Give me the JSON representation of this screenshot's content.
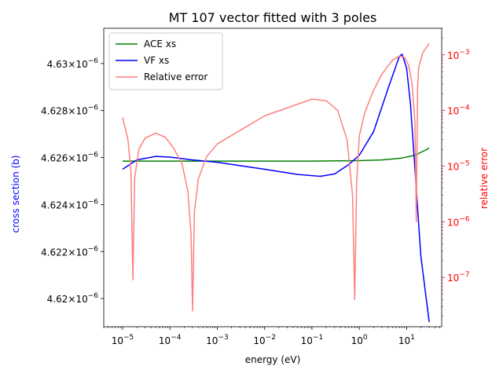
{
  "chart_data": {
    "type": "line",
    "title": "MT 107 vector fitted with 3 poles",
    "xlabel": "energy (eV)",
    "ylabel_left": "cross section (b)",
    "ylabel_right": "relative error",
    "x_scale": "log",
    "xlim": [
      4e-06,
      55
    ],
    "ylim_left": [
      4.6188e-06,
      4.6315e-06
    ],
    "y_right_scale": "log",
    "ylim_right": [
      1.3e-08,
      0.003
    ],
    "x_ticks": [
      {
        "value": 1e-05,
        "base": "10",
        "exp": "−5"
      },
      {
        "value": 0.0001,
        "base": "10",
        "exp": "−4"
      },
      {
        "value": 0.001,
        "base": "10",
        "exp": "−3"
      },
      {
        "value": 0.01,
        "base": "10",
        "exp": "−2"
      },
      {
        "value": 0.1,
        "base": "10",
        "exp": "−1"
      },
      {
        "value": 1,
        "base": "10",
        "exp": "0"
      },
      {
        "value": 10,
        "base": "10",
        "exp": "1"
      }
    ],
    "y_left_ticks": [
      {
        "value": 4.62e-06,
        "mant": "4.62",
        "exp": "−6"
      },
      {
        "value": 4.622e-06,
        "mant": "4.622",
        "exp": "−6"
      },
      {
        "value": 4.624e-06,
        "mant": "4.624",
        "exp": "−6"
      },
      {
        "value": 4.626e-06,
        "mant": "4.626",
        "exp": "−6"
      },
      {
        "value": 4.628e-06,
        "mant": "4.628",
        "exp": "−6"
      },
      {
        "value": 4.63e-06,
        "mant": "4.63",
        "exp": "−6"
      }
    ],
    "y_right_ticks": [
      {
        "value": 1e-07,
        "base": "10",
        "exp": "−7"
      },
      {
        "value": 1e-06,
        "base": "10",
        "exp": "−6"
      },
      {
        "value": 1e-05,
        "base": "10",
        "exp": "−5"
      },
      {
        "value": 0.0001,
        "base": "10",
        "exp": "−4"
      },
      {
        "value": 0.001,
        "base": "10",
        "exp": "−3"
      }
    ],
    "legend_placement": "upper left",
    "series": [
      {
        "name": "ACE xs",
        "axis": "left",
        "color": "#008000",
        "x": [
          1e-05,
          0.001,
          0.1,
          1,
          3,
          8,
          15,
          20,
          25,
          30
        ],
        "y": [
          4.62585e-06,
          4.62585e-06,
          4.62585e-06,
          4.62587e-06,
          4.6259e-06,
          4.62598e-06,
          4.6261e-06,
          4.62622e-06,
          4.62632e-06,
          4.6264e-06
        ]
      },
      {
        "name": "VF xs",
        "axis": "left",
        "color": "#0000ff",
        "x": [
          1e-05,
          2e-05,
          5e-05,
          0.0001,
          0.0003,
          0.001,
          0.01,
          0.05,
          0.15,
          0.3,
          0.6,
          1,
          2,
          4,
          7,
          8,
          10,
          12,
          15,
          20,
          30
        ],
        "y": [
          4.6255e-06,
          4.6259e-06,
          4.62605e-06,
          4.62602e-06,
          4.6259e-06,
          4.6258e-06,
          4.6255e-06,
          4.62528e-06,
          4.6252e-06,
          4.6253e-06,
          4.6257e-06,
          4.6261e-06,
          4.6271e-06,
          4.6289e-06,
          4.6303e-06,
          4.6304e-06,
          4.6298e-06,
          4.6283e-06,
          4.6255e-06,
          4.6218e-06,
          4.619e-06
        ]
      },
      {
        "name": "Relative error",
        "axis": "right",
        "color": "#ff7f7f",
        "x": [
          1e-05,
          1.3e-05,
          1.5e-05,
          1.65e-05,
          1.8e-05,
          2.2e-05,
          3e-05,
          5e-05,
          8e-05,
          0.00012,
          0.00018,
          0.00024,
          0.00028,
          0.0003,
          0.00033,
          0.0004,
          0.0006,
          0.001,
          0.01,
          0.1,
          0.2,
          0.35,
          0.55,
          0.72,
          0.8,
          0.88,
          1.0,
          1.3,
          2,
          3,
          5,
          7,
          9,
          11,
          13,
          15,
          16,
          17,
          18,
          22,
          30
        ],
        "y": [
          7.5e-05,
          3e-05,
          8e-06,
          9e-08,
          6e-06,
          2e-05,
          3.2e-05,
          3.9e-05,
          3.3e-05,
          2.1e-05,
          1.1e-05,
          3.5e-06,
          6e-07,
          2.5e-08,
          1.5e-06,
          6e-06,
          1.5e-05,
          2.5e-05,
          8e-05,
          0.00016,
          0.00015,
          0.0001,
          3e-05,
          3e-06,
          4e-08,
          5e-06,
          3.5e-05,
          9e-05,
          0.00023,
          0.00045,
          0.0008,
          0.00095,
          0.0009,
          0.00065,
          0.0003,
          6e-05,
          1e-06,
          0.00025,
          0.0006,
          0.0011,
          0.0016
        ]
      }
    ]
  }
}
